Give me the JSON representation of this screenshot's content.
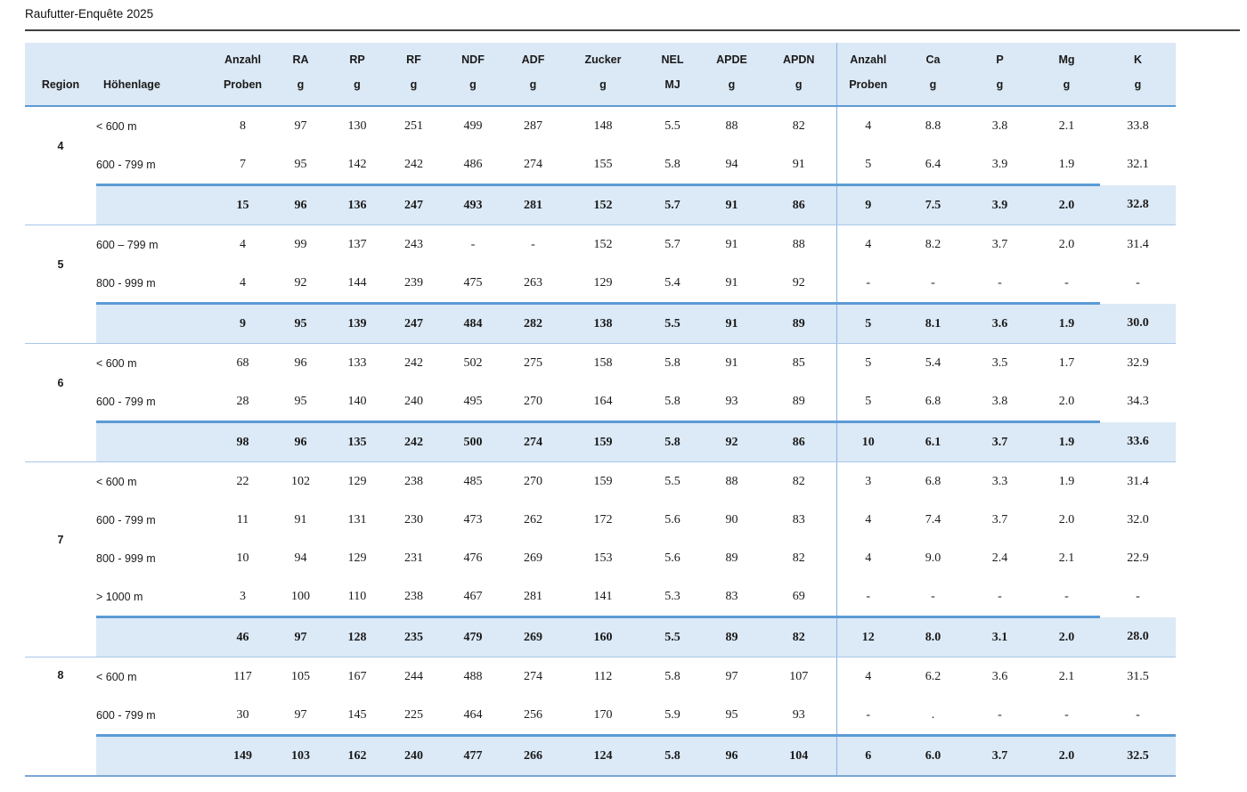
{
  "title": "Raufutter-Enquête 2025",
  "colors": {
    "header_bg": "#dbe8f5",
    "band_bg": "#dce9f6",
    "accent_border": "#5b9bd5",
    "thin_border": "#a9c7e8",
    "divider": "#8ab4e0",
    "table_end_border": "#7aa7d6",
    "title_rule": "#3f3f3f",
    "text": "#1a1a1a"
  },
  "table": {
    "columns": [
      {
        "key": "region",
        "l1": "",
        "l2": "Region"
      },
      {
        "key": "hoehenlage",
        "l1": "",
        "l2": "Höhenlage"
      },
      {
        "key": "anzahl1",
        "l1": "Anzahl",
        "l2": "Proben"
      },
      {
        "key": "ra",
        "l1": "RA",
        "l2": "g"
      },
      {
        "key": "rp",
        "l1": "RP",
        "l2": "g"
      },
      {
        "key": "rf",
        "l1": "RF",
        "l2": "g"
      },
      {
        "key": "ndf",
        "l1": "NDF",
        "l2": "g"
      },
      {
        "key": "adf",
        "l1": "ADF",
        "l2": "g"
      },
      {
        "key": "zucker",
        "l1": "Zucker",
        "l2": "g"
      },
      {
        "key": "nel",
        "l1": "NEL",
        "l2": "MJ"
      },
      {
        "key": "apde",
        "l1": "APDE",
        "l2": "g"
      },
      {
        "key": "apdn",
        "l1": "APDN",
        "l2": "g"
      },
      {
        "key": "anzahl2",
        "l1": "Anzahl",
        "l2": "Proben"
      },
      {
        "key": "ca",
        "l1": "Ca",
        "l2": "g"
      },
      {
        "key": "p",
        "l1": "P",
        "l2": "g"
      },
      {
        "key": "mg",
        "l1": "Mg",
        "l2": "g"
      },
      {
        "key": "k",
        "l1": "K",
        "l2": "g"
      }
    ],
    "groups": [
      {
        "region": "4",
        "region_align": "middle",
        "rows": [
          {
            "hoehenlage": "< 600 m",
            "values": [
              "8",
              "97",
              "130",
              "251",
              "499",
              "287",
              "148",
              "5.5",
              "88",
              "82",
              "4",
              "8.8",
              "3.8",
              "2.1",
              "33.8"
            ]
          },
          {
            "hoehenlage": "600 - 799 m",
            "values": [
              "7",
              "95",
              "142",
              "242",
              "486",
              "274",
              "155",
              "5.8",
              "94",
              "91",
              "5",
              "6.4",
              "3.9",
              "1.9",
              "32.1"
            ]
          }
        ],
        "total": [
          "15",
          "96",
          "136",
          "247",
          "493",
          "281",
          "152",
          "5.7",
          "91",
          "86",
          "9",
          "7.5",
          "3.9",
          "2.0",
          "32.8"
        ]
      },
      {
        "region": "5",
        "region_align": "middle",
        "rows": [
          {
            "hoehenlage": "600 – 799 m",
            "values": [
              "4",
              "99",
              "137",
              "243",
              "-",
              "-",
              "152",
              "5.7",
              "91",
              "88",
              "4",
              "8.2",
              "3.7",
              "2.0",
              "31.4"
            ]
          },
          {
            "hoehenlage": "800 - 999 m",
            "values": [
              "4",
              "92",
              "144",
              "239",
              "475",
              "263",
              "129",
              "5.4",
              "91",
              "92",
              "-",
              "-",
              "-",
              "-",
              "-"
            ]
          }
        ],
        "total": [
          "9",
          "95",
          "139",
          "247",
          "484",
          "282",
          "138",
          "5.5",
          "91",
          "89",
          "5",
          "8.1",
          "3.6",
          "1.9",
          "30.0"
        ]
      },
      {
        "region": "6",
        "region_align": "middle",
        "rows": [
          {
            "hoehenlage": "< 600 m",
            "values": [
              "68",
              "96",
              "133",
              "242",
              "502",
              "275",
              "158",
              "5.8",
              "91",
              "85",
              "5",
              "5.4",
              "3.5",
              "1.7",
              "32.9"
            ]
          },
          {
            "hoehenlage": "600 - 799 m",
            "values": [
              "28",
              "95",
              "140",
              "240",
              "495",
              "270",
              "164",
              "5.8",
              "93",
              "89",
              "5",
              "6.8",
              "3.8",
              "2.0",
              "34.3"
            ]
          }
        ],
        "total": [
          "98",
          "96",
          "135",
          "242",
          "500",
          "274",
          "159",
          "5.8",
          "92",
          "86",
          "10",
          "6.1",
          "3.7",
          "1.9",
          "33.6"
        ]
      },
      {
        "region": "7",
        "region_align": "middle",
        "rows": [
          {
            "hoehenlage": "< 600 m",
            "values": [
              "22",
              "102",
              "129",
              "238",
              "485",
              "270",
              "159",
              "5.5",
              "88",
              "82",
              "3",
              "6.8",
              "3.3",
              "1.9",
              "31.4"
            ]
          },
          {
            "hoehenlage": "600 - 799 m",
            "values": [
              "11",
              "91",
              "131",
              "230",
              "473",
              "262",
              "172",
              "5.6",
              "90",
              "83",
              "4",
              "7.4",
              "3.7",
              "2.0",
              "32.0"
            ]
          },
          {
            "hoehenlage": "800 - 999 m",
            "values": [
              "10",
              "94",
              "129",
              "231",
              "476",
              "269",
              "153",
              "5.6",
              "89",
              "82",
              "4",
              "9.0",
              "2.4",
              "2.1",
              "22.9"
            ]
          },
          {
            "hoehenlage": "> 1000 m",
            "values": [
              "3",
              "100",
              "110",
              "238",
              "467",
              "281",
              "141",
              "5.3",
              "83",
              "69",
              "-",
              "-",
              "-",
              "-",
              "-"
            ]
          }
        ],
        "total": [
          "46",
          "97",
          "128",
          "235",
          "479",
          "269",
          "160",
          "5.5",
          "89",
          "82",
          "12",
          "8.0",
          "3.1",
          "2.0",
          "28.0"
        ]
      },
      {
        "region": "8",
        "region_align": "top",
        "rows": [
          {
            "hoehenlage": "< 600 m",
            "values": [
              "117",
              "105",
              "167",
              "244",
              "488",
              "274",
              "112",
              "5.8",
              "97",
              "107",
              "4",
              "6.2",
              "3.6",
              "2.1",
              "31.5"
            ]
          },
          {
            "hoehenlage": "600 - 799 m",
            "values": [
              "30",
              "97",
              "145",
              "225",
              "464",
              "256",
              "170",
              "5.9",
              "95",
              "93",
              "-",
              ".",
              "-",
              "-",
              "-"
            ]
          }
        ],
        "total": [
          "149",
          "103",
          "162",
          "240",
          "477",
          "266",
          "124",
          "5.8",
          "96",
          "104",
          "6",
          "6.0",
          "3.7",
          "2.0",
          "32.5"
        ]
      }
    ]
  }
}
